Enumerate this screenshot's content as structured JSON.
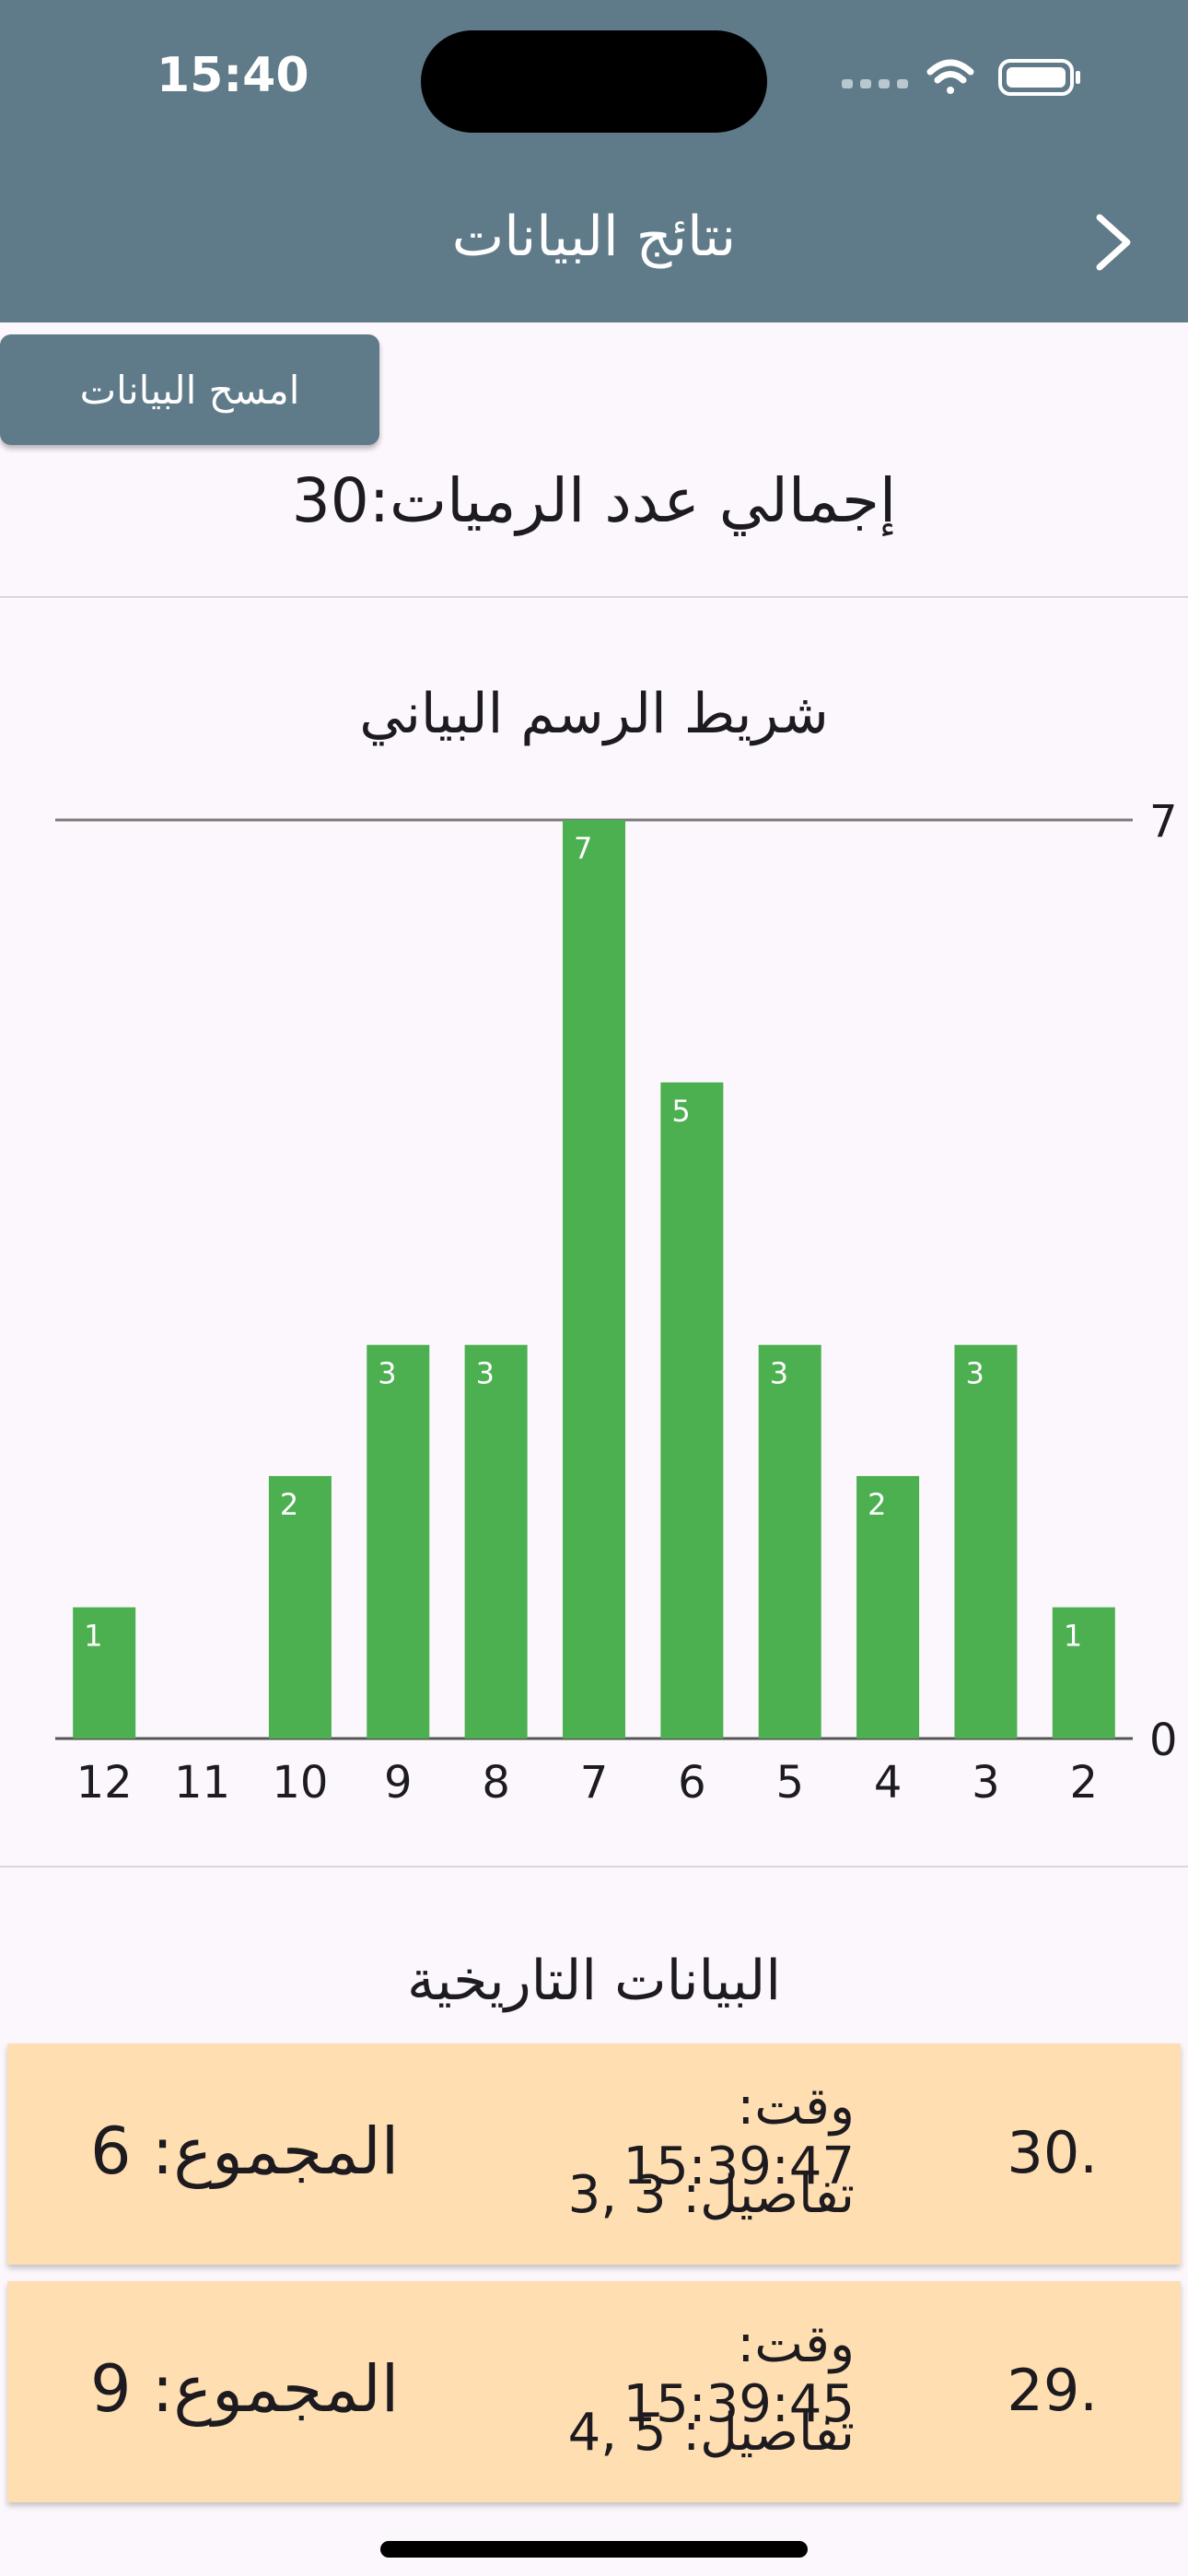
{
  "status_bar": {
    "time": "15:40"
  },
  "header": {
    "title": "نتائج البيانات"
  },
  "clear_button_label": "امسح البيانات",
  "total_rolls_text": "إجمالي عدد الرميات:30",
  "chart_title": "شريط الرسم البياني",
  "chart_data": {
    "type": "bar",
    "categories": [
      "12",
      "11",
      "10",
      "9",
      "8",
      "7",
      "6",
      "5",
      "4",
      "3",
      "2"
    ],
    "values": [
      1,
      0,
      2,
      3,
      3,
      7,
      5,
      3,
      2,
      3,
      1
    ],
    "ylim": [
      0,
      7
    ],
    "y_ticks": [
      "0",
      "7"
    ],
    "bar_color": "#4caf50",
    "y_axis_position": "right"
  },
  "history_title": "البيانات التاريخية",
  "history": [
    {
      "index": "30.",
      "time": "وقت: 15:39:47",
      "details": "تفاصيل: 3 ,3",
      "sum": "المجموع: 6"
    },
    {
      "index": "29.",
      "time": "وقت: 15:39:45",
      "details": "تفاصيل: 5 ,4",
      "sum": "المجموع: 9"
    }
  ],
  "colors": {
    "app_bar": "#5f7a88",
    "card": "#ffdfb1",
    "background": "#fcf7fc"
  }
}
